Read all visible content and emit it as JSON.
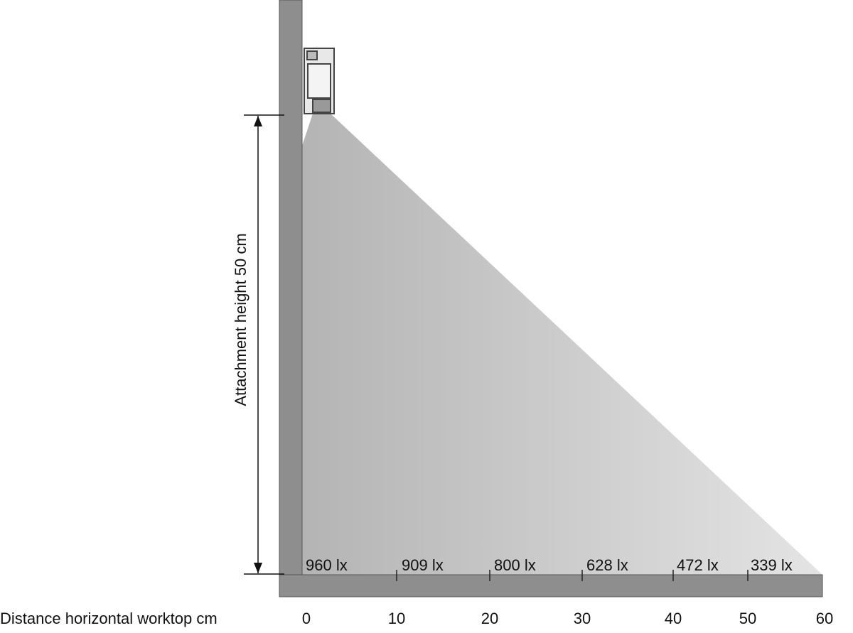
{
  "dimension_label": "Attachment height 50 cm",
  "axis_label": "Distance horizontal worktop cm",
  "ticks": [
    "0",
    "10",
    "20",
    "30",
    "40",
    "50",
    "60"
  ],
  "lux_labels": [
    "960 lx",
    "909 lx",
    "800 lx",
    "628 lx",
    "472 lx",
    "339 lx"
  ]
}
